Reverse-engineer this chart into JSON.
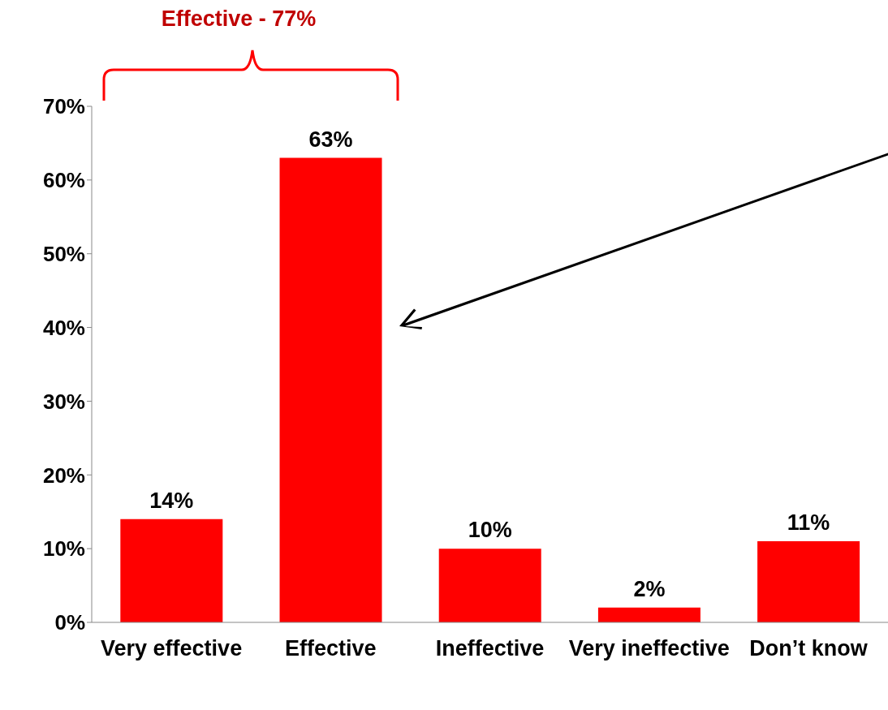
{
  "chart_data": {
    "type": "bar",
    "categories": [
      "Very effective",
      "Effective",
      "Ineffective",
      "Very ineffective",
      "Don’t know"
    ],
    "values": [
      14,
      63,
      10,
      2,
      11
    ],
    "value_labels": [
      "14%",
      "63%",
      "10%",
      "2%",
      "11%"
    ],
    "color": "#ff0000",
    "ylim": [
      0,
      70
    ],
    "yticks": [
      {
        "value": 0,
        "label": "0%"
      },
      {
        "value": 10,
        "label": "10%"
      },
      {
        "value": 20,
        "label": "20%"
      },
      {
        "value": 30,
        "label": "30%"
      },
      {
        "value": 40,
        "label": "40%"
      },
      {
        "value": 50,
        "label": "50%"
      },
      {
        "value": 60,
        "label": "60%"
      },
      {
        "value": 70,
        "label": "70%"
      }
    ],
    "annotations": [
      "Effective - 77%"
    ]
  }
}
